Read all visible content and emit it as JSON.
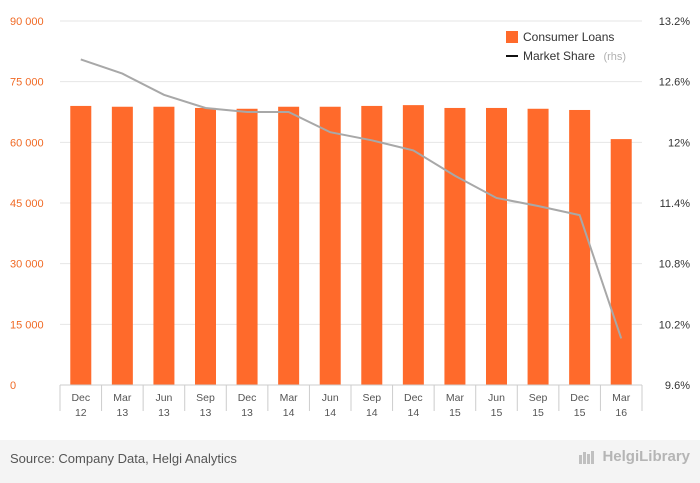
{
  "chart_data": {
    "type": "bar",
    "categories": [
      [
        "Dec",
        "12"
      ],
      [
        "Mar",
        "13"
      ],
      [
        "Jun",
        "13"
      ],
      [
        "Sep",
        "13"
      ],
      [
        "Dec",
        "13"
      ],
      [
        "Mar",
        "14"
      ],
      [
        "Jun",
        "14"
      ],
      [
        "Sep",
        "14"
      ],
      [
        "Dec",
        "14"
      ],
      [
        "Mar",
        "15"
      ],
      [
        "Jun",
        "15"
      ],
      [
        "Sep",
        "15"
      ],
      [
        "Dec",
        "15"
      ],
      [
        "Mar",
        "16"
      ]
    ],
    "series": [
      {
        "name": "Consumer Loans",
        "type": "bar",
        "axis": "left",
        "color": "#ff6a2b",
        "values": [
          69000,
          68800,
          68800,
          68500,
          68300,
          68800,
          68800,
          69000,
          69200,
          68500,
          68500,
          68300,
          68000,
          60800
        ]
      },
      {
        "name": "Market Share",
        "name_suffix": "(rhs)",
        "type": "line",
        "axis": "right",
        "color": "#a8a8a8",
        "values": [
          12.82,
          12.68,
          12.47,
          12.34,
          12.3,
          12.3,
          12.1,
          12.02,
          11.92,
          11.67,
          11.45,
          11.37,
          11.28,
          10.06
        ]
      }
    ],
    "left_axis": {
      "ylim": [
        0,
        90000
      ],
      "ticks": [
        "0",
        "15 000",
        "30 000",
        "45 000",
        "60 000",
        "75 000",
        "90 000"
      ],
      "tick_values": [
        0,
        15000,
        30000,
        45000,
        60000,
        75000,
        90000
      ]
    },
    "right_axis": {
      "ylim": [
        9.6,
        13.2
      ],
      "ticks": [
        "9.6%",
        "10.2%",
        "10.8%",
        "11.4%",
        "12%",
        "12.6%",
        "13.2%"
      ],
      "tick_values": [
        9.6,
        10.2,
        10.8,
        11.4,
        12,
        12.6,
        13.2
      ]
    },
    "legend_position": "top-right",
    "grid": true
  },
  "footer": {
    "source": "Source: Company Data, Helgi Analytics",
    "logo": "HelgiLibrary"
  }
}
